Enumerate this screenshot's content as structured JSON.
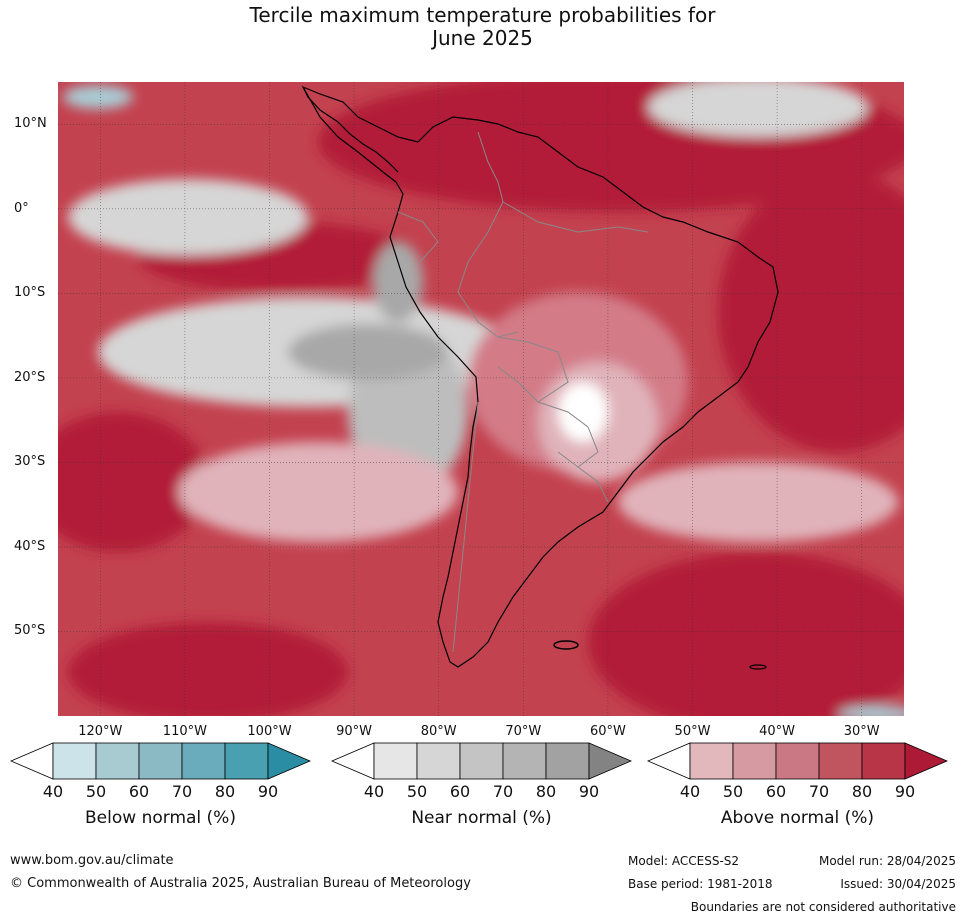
{
  "title": {
    "line1": "Tercile maximum temperature probabilities for",
    "line2": "June 2025"
  },
  "map": {
    "lat_labels": [
      "10°N",
      "0°",
      "10°S",
      "20°S",
      "30°S",
      "40°S",
      "50°S"
    ],
    "lon_labels": [
      "120°W",
      "110°W",
      "100°W",
      "90°W",
      "80°W",
      "70°W",
      "60°W",
      "50°W",
      "40°W",
      "30°W"
    ],
    "colors": {
      "ocean_base": "#c3424f",
      "strong": "#b21e38",
      "land": "#d37b88",
      "light": "#e0b3ba",
      "near_light": "#d6d6d6",
      "near_mid": "#bdbdbd",
      "near_dark": "#a8a8a8",
      "below_light": "#a9ccd4",
      "coast": "#000000",
      "border": "#888888"
    }
  },
  "colorbars": [
    {
      "label": "Below normal (%)",
      "ticks": [
        "40",
        "50",
        "60",
        "70",
        "80",
        "90"
      ],
      "colors": [
        "#ffffff",
        "#cce3e9",
        "#a8cbd2",
        "#8bbac5",
        "#6aacbb",
        "#48a0b1",
        "#2a8da4"
      ]
    },
    {
      "label": "Near normal (%)",
      "ticks": [
        "40",
        "50",
        "60",
        "70",
        "80",
        "90"
      ],
      "colors": [
        "#ffffff",
        "#e6e6e6",
        "#d6d6d6",
        "#c4c4c4",
        "#b4b4b4",
        "#a2a2a2",
        "#838383"
      ]
    },
    {
      "label": "Above normal (%)",
      "ticks": [
        "40",
        "50",
        "60",
        "70",
        "80",
        "90"
      ],
      "colors": [
        "#ffffff",
        "#e2b8bd",
        "#d69aa2",
        "#ca7883",
        "#c0545f",
        "#b83548",
        "#ad1a36"
      ]
    }
  ],
  "footer": {
    "url": "www.bom.gov.au/climate",
    "copyright": "© Commonwealth of Australia 2025, Australian Bureau of Meteorology",
    "model": "Model: ACCESS-S2",
    "model_run": "Model run: 28/04/2025",
    "base_period": "Base period: 1981-2018",
    "issued": "Issued: 30/04/2025",
    "disclaimer": "Boundaries are not considered authoritative"
  }
}
